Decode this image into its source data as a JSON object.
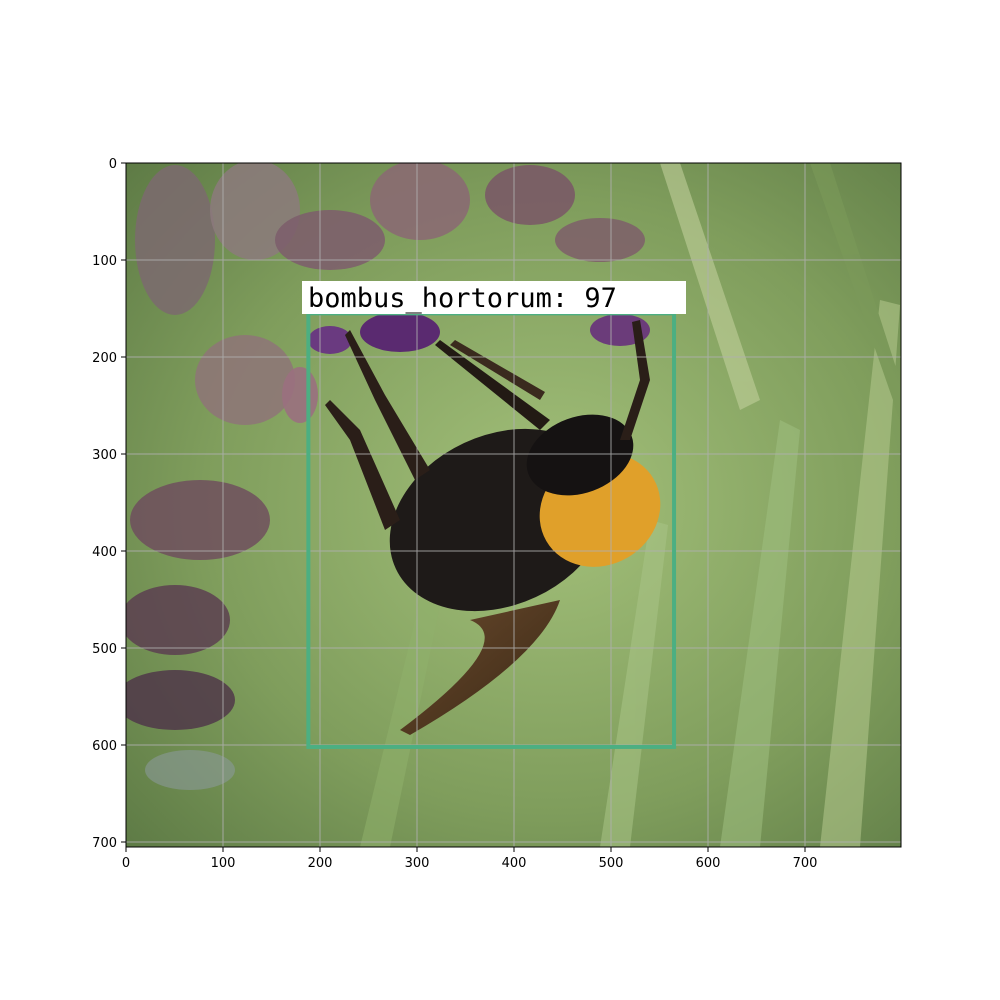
{
  "axes": {
    "x_ticks": [
      "0",
      "100",
      "200",
      "300",
      "400",
      "500",
      "600",
      "700"
    ],
    "y_ticks": [
      "0",
      "100",
      "200",
      "300",
      "400",
      "500",
      "600",
      "700"
    ],
    "grid": true
  },
  "photo": {
    "subject": "bumblebee on purple flowers",
    "colors": {
      "background_green": "#8aa86a",
      "bee_black": "#1e1a18",
      "bee_yellow": "#e0a02a",
      "flower_purple": "#5a2a70"
    }
  },
  "detection": {
    "label": "bombus_hortorum: 97",
    "box_color": "#4caf82",
    "box_data": {
      "x_min": 188,
      "y_min": 155,
      "x_max": 565,
      "y_max": 602
    }
  }
}
